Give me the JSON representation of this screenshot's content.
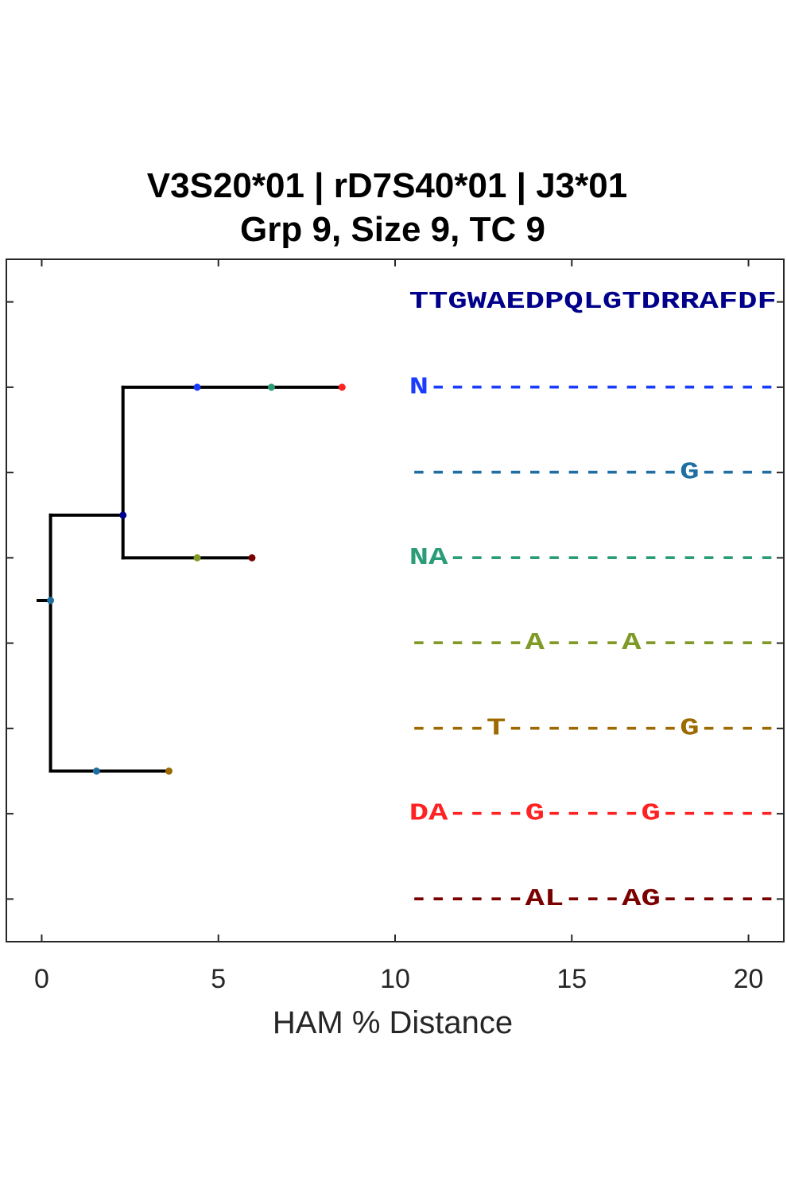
{
  "chart_data": {
    "type": "tree",
    "title": [
      "V3S20*01 | rD7S40*01 | J3*01",
      "Grp 9, Size 9, TC 9"
    ],
    "xlabel": "HAM % Distance",
    "ylabel": "",
    "xlim": [
      -1,
      21
    ],
    "ylim": [
      0.5,
      8.5
    ],
    "xticks": [
      0,
      5,
      10,
      15,
      20
    ],
    "xtick_labels": [
      "0",
      "5",
      "10",
      "15",
      "20"
    ],
    "yticks": [
      1,
      2,
      3,
      4,
      5,
      6,
      7,
      8
    ],
    "grid": false,
    "tree_segments": [
      {
        "x": [
          -0.1,
          0.25
        ],
        "y": [
          4.5,
          4.5
        ]
      },
      {
        "x": [
          0.25,
          0.25
        ],
        "y": [
          3.5,
          6.5
        ]
      },
      {
        "x": [
          0.25,
          2.3
        ],
        "y": [
          3.5,
          3.5
        ]
      },
      {
        "x": [
          2.3,
          2.3
        ],
        "y": [
          2.0,
          4.0
        ]
      },
      {
        "x": [
          2.3,
          8.5
        ],
        "y": [
          2.0,
          2.0
        ]
      },
      {
        "x": [
          2.3,
          5.95
        ],
        "y": [
          4.0,
          4.0
        ]
      },
      {
        "x": [
          0.25,
          3.6
        ],
        "y": [
          6.5,
          6.5
        ]
      }
    ],
    "nodes": [
      {
        "x": 0.25,
        "y": 4.5,
        "color": "#1f6fa3"
      },
      {
        "x": 2.3,
        "y": 3.5,
        "color": "#00008b"
      },
      {
        "x": 4.4,
        "y": 2.0,
        "color": "#1a3cff"
      },
      {
        "x": 6.5,
        "y": 2.0,
        "color": "#2a9d78"
      },
      {
        "x": 8.5,
        "y": 2.0,
        "color": "#ff2222"
      },
      {
        "x": 4.4,
        "y": 4.0,
        "color": "#7f9a26"
      },
      {
        "x": 5.95,
        "y": 4.0,
        "color": "#7a0000"
      },
      {
        "x": 1.55,
        "y": 6.5,
        "color": "#1f6fa3"
      },
      {
        "x": 3.6,
        "y": 6.5,
        "color": "#9c6a00"
      }
    ],
    "sequences": [
      {
        "text": "TTGWAEDPQLGTDRRAFDF",
        "color": "#00008b",
        "y": 1
      },
      {
        "text": "N------------------",
        "color": "#1a3cff",
        "y": 2
      },
      {
        "text": "--------------G----",
        "color": "#1f6fa3",
        "y": 3
      },
      {
        "text": "NA-----------------",
        "color": "#2a9d78",
        "y": 4
      },
      {
        "text": "------A----A-------",
        "color": "#7f9a26",
        "y": 5
      },
      {
        "text": "----T---------G----",
        "color": "#9c6a00",
        "y": 6
      },
      {
        "text": "DA----G-----G------",
        "color": "#ff2222",
        "y": 7
      },
      {
        "text": "------AL---AG------",
        "color": "#7a0000",
        "y": 8
      }
    ],
    "sequence_x": 10.4
  }
}
